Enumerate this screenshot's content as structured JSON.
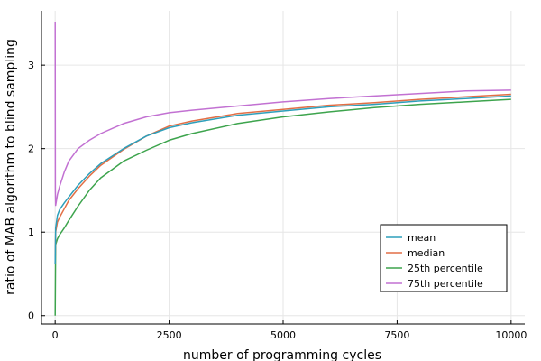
{
  "chart_data": {
    "type": "line",
    "title": "",
    "xlabel": "number of programming cycles",
    "ylabel": "ratio of MAB algorithm to blind sampling",
    "xlim": [
      -300,
      10300
    ],
    "ylim": [
      -0.1,
      3.65
    ],
    "xticks": [
      0,
      2500,
      5000,
      7500,
      10000
    ],
    "xtick_labels": [
      "0",
      "2500",
      "5000",
      "7500",
      "10000"
    ],
    "yticks": [
      0,
      1,
      2,
      3
    ],
    "ytick_labels": [
      "0",
      "1",
      "2",
      "3"
    ],
    "grid": true,
    "legend_position": "bottom-right",
    "series": [
      {
        "name": "mean",
        "color": "#2d9fbb",
        "x": [
          1,
          10,
          50,
          100,
          200,
          300,
          500,
          750,
          1000,
          1500,
          2000,
          2500,
          3000,
          4000,
          5000,
          6000,
          7000,
          8000,
          9000,
          10000
        ],
        "y": [
          0.62,
          1.05,
          1.2,
          1.27,
          1.35,
          1.42,
          1.56,
          1.7,
          1.82,
          2.0,
          2.15,
          2.25,
          2.31,
          2.4,
          2.45,
          2.5,
          2.53,
          2.57,
          2.6,
          2.63
        ]
      },
      {
        "name": "median",
        "color": "#e26f46",
        "x": [
          1,
          10,
          50,
          100,
          200,
          300,
          500,
          750,
          1000,
          1500,
          2000,
          2500,
          3000,
          4000,
          5000,
          6000,
          7000,
          8000,
          9000,
          10000
        ],
        "y": [
          0.62,
          1.0,
          1.12,
          1.18,
          1.28,
          1.38,
          1.52,
          1.67,
          1.8,
          1.99,
          2.15,
          2.27,
          2.33,
          2.42,
          2.47,
          2.52,
          2.55,
          2.59,
          2.62,
          2.65
        ]
      },
      {
        "name": "25th percentile",
        "color": "#3da44d",
        "x": [
          1,
          10,
          50,
          100,
          200,
          300,
          500,
          750,
          1000,
          1500,
          2000,
          2500,
          3000,
          4000,
          5000,
          6000,
          7000,
          8000,
          9000,
          10000
        ],
        "y": [
          0.0,
          0.85,
          0.92,
          0.97,
          1.05,
          1.14,
          1.31,
          1.5,
          1.65,
          1.85,
          1.98,
          2.1,
          2.18,
          2.3,
          2.38,
          2.44,
          2.49,
          2.53,
          2.56,
          2.59
        ]
      },
      {
        "name": "75th percentile",
        "color": "#c271d2",
        "x": [
          1,
          5,
          10,
          50,
          100,
          200,
          300,
          500,
          750,
          1000,
          1500,
          2000,
          2500,
          3000,
          4000,
          5000,
          6000,
          7000,
          8000,
          9000,
          10000
        ],
        "y": [
          3.52,
          1.5,
          1.32,
          1.45,
          1.55,
          1.72,
          1.85,
          2.0,
          2.1,
          2.18,
          2.3,
          2.38,
          2.43,
          2.46,
          2.51,
          2.56,
          2.6,
          2.63,
          2.66,
          2.69,
          2.7
        ]
      }
    ]
  }
}
